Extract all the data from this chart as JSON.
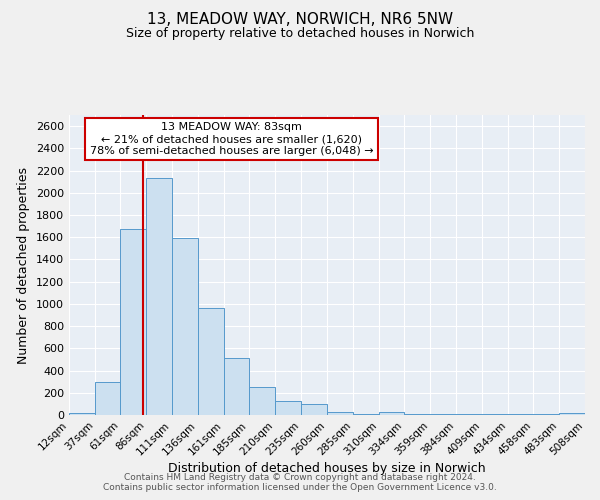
{
  "title1": "13, MEADOW WAY, NORWICH, NR6 5NW",
  "title2": "Size of property relative to detached houses in Norwich",
  "xlabel": "Distribution of detached houses by size in Norwich",
  "ylabel": "Number of detached properties",
  "bar_color": "#cce0f0",
  "bar_edge_color": "#5599cc",
  "background_color": "#f0f0f0",
  "plot_bg_color": "#e8eef5",
  "grid_color": "#ffffff",
  "vline_x": 83,
  "vline_color": "#cc0000",
  "annotation_line1": "13 MEADOW WAY: 83sqm",
  "annotation_line2": "← 21% of detached houses are smaller (1,620)",
  "annotation_line3": "78% of semi-detached houses are larger (6,048) →",
  "annotation_box_color": "#ffffff",
  "annotation_edge_color": "#cc0000",
  "ylim": [
    0,
    2700
  ],
  "yticks": [
    0,
    200,
    400,
    600,
    800,
    1000,
    1200,
    1400,
    1600,
    1800,
    2000,
    2200,
    2400,
    2600
  ],
  "bin_edges": [
    12,
    37,
    61,
    86,
    111,
    136,
    161,
    185,
    210,
    235,
    260,
    285,
    310,
    334,
    359,
    384,
    409,
    434,
    458,
    483,
    508
  ],
  "bar_heights": [
    20,
    300,
    1670,
    2130,
    1590,
    960,
    510,
    250,
    125,
    100,
    30,
    5,
    30,
    5,
    5,
    5,
    5,
    5,
    5,
    20
  ],
  "footer_text1": "Contains HM Land Registry data © Crown copyright and database right 2024.",
  "footer_text2": "Contains public sector information licensed under the Open Government Licence v3.0."
}
